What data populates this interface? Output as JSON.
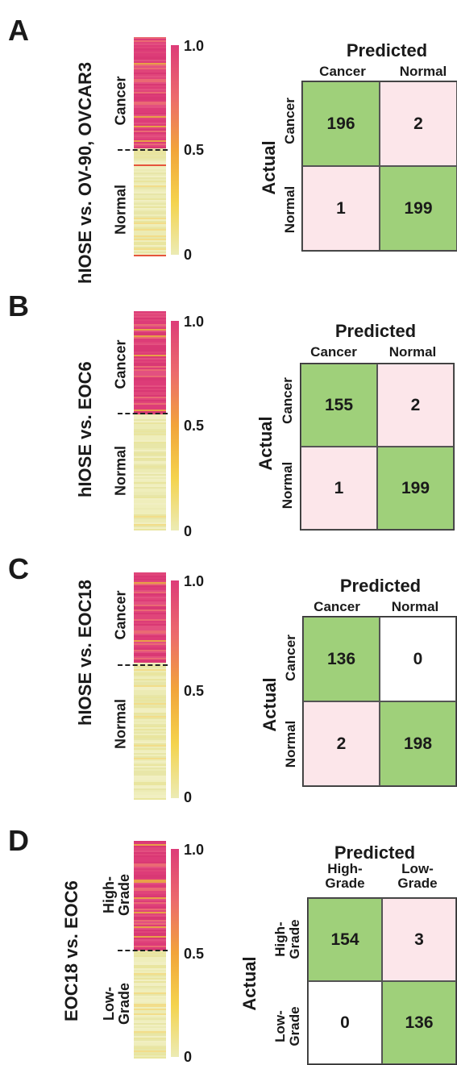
{
  "colors": {
    "high": "#dd3c78",
    "low": "#ecebb4",
    "correct": "#9fd07a",
    "error": "#fce6ea"
  },
  "panels": [
    {
      "label": "A",
      "title": "hIOSE vs. OV-90, OVCAR3",
      "group_top": "Cancer",
      "group_bottom": "Normal",
      "ticks": [
        "1.0",
        "0.5",
        "0"
      ],
      "predicted": "Predicted",
      "actual": "Actual",
      "col_headers": [
        "Cancer",
        "Normal"
      ],
      "row_headers": [
        "Cancer",
        "Normal"
      ],
      "matrix": [
        [
          "196",
          "2"
        ],
        [
          "1",
          "199"
        ]
      ]
    },
    {
      "label": "B",
      "title": "hIOSE vs. EOC6",
      "group_top": "Cancer",
      "group_bottom": "Normal",
      "ticks": [
        "1.0",
        "0.5",
        "0"
      ],
      "predicted": "Predicted",
      "actual": "Actual",
      "col_headers": [
        "Cancer",
        "Normal"
      ],
      "row_headers": [
        "Cancer",
        "Normal"
      ],
      "matrix": [
        [
          "155",
          "2"
        ],
        [
          "1",
          "199"
        ]
      ]
    },
    {
      "label": "C",
      "title": "hIOSE vs. EOC18",
      "group_top": "Cancer",
      "group_bottom": "Normal",
      "ticks": [
        "1.0",
        "0.5",
        "0"
      ],
      "predicted": "Predicted",
      "actual": "Actual",
      "col_headers": [
        "Cancer",
        "Normal"
      ],
      "row_headers": [
        "Cancer",
        "Normal"
      ],
      "matrix": [
        [
          "136",
          "0"
        ],
        [
          "2",
          "198"
        ]
      ]
    },
    {
      "label": "D",
      "title": "EOC18 vs. EOC6",
      "group_top": "High-\nGrade",
      "group_bottom": "Low-\nGrade",
      "ticks": [
        "1.0",
        "0.5",
        "0"
      ],
      "predicted": "Predicted",
      "actual": "Actual",
      "col_headers": [
        "High-\nGrade",
        "Low-\nGrade"
      ],
      "row_headers": [
        "High-\nGrade",
        "Low-\nGrade"
      ],
      "matrix": [
        [
          "154",
          "3"
        ],
        [
          "0",
          "136"
        ]
      ]
    }
  ]
}
